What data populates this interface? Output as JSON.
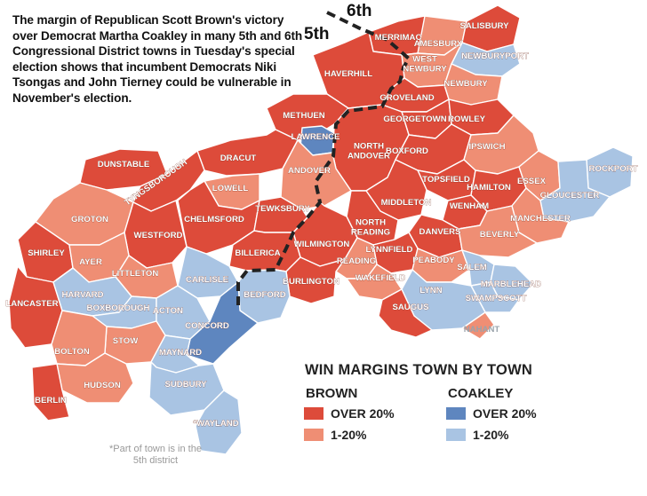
{
  "caption": "The margin of Republican Scott Brown's victory over Democrat Martha Coakley in many 5th and 6th Congressional District towns in Tuesday's special election shows that incumbent Democrats Niki Tsongas and John Tierney could be vulnerable in November's election.",
  "district_labels": {
    "north": "6th",
    "south": "5th"
  },
  "colors": {
    "brown_over_20": "#dd4b3a",
    "brown_1_20": "#ef8e74",
    "coakley_over_20": "#5e86bf",
    "coakley_1_20": "#a9c4e3",
    "outline": "#ffffff",
    "district_line": "#222222"
  },
  "legend": {
    "title": "WIN MARGINS TOWN BY TOWN",
    "brown": {
      "heading": "BROWN",
      "over": "OVER 20%",
      "under": "1-20%"
    },
    "coakley": {
      "heading": "COAKLEY",
      "over": "OVER 20%",
      "under": "1-20%"
    }
  },
  "footnote": "*Part of town is in the 5th district",
  "towns": [
    {
      "name": "AMESBURY",
      "cat": "brown_1_20"
    },
    {
      "name": "SALISBURY",
      "cat": "brown_over_20"
    },
    {
      "name": "MERRIMAC",
      "cat": "brown_over_20"
    },
    {
      "name": "NEWBURYPORT",
      "cat": "coakley_1_20"
    },
    {
      "name": "WEST NEWBURY",
      "cat": "brown_1_20"
    },
    {
      "name": "NEWBURY",
      "cat": "brown_1_20"
    },
    {
      "name": "HAVERHILL",
      "cat": "brown_over_20"
    },
    {
      "name": "GROVELAND",
      "cat": "brown_over_20"
    },
    {
      "name": "GEORGETOWN",
      "cat": "brown_over_20"
    },
    {
      "name": "ROWLEY",
      "cat": "brown_over_20"
    },
    {
      "name": "METHUEN",
      "cat": "brown_over_20"
    },
    {
      "name": "LAWRENCE",
      "cat": "coakley_over_20"
    },
    {
      "name": "NORTH ANDOVER",
      "cat": "brown_over_20"
    },
    {
      "name": "BOXFORD",
      "cat": "brown_over_20"
    },
    {
      "name": "IPSWICH",
      "cat": "brown_1_20"
    },
    {
      "name": "DUNSTABLE",
      "cat": "brown_over_20"
    },
    {
      "name": "DRACUT",
      "cat": "brown_over_20"
    },
    {
      "name": "ANDOVER",
      "cat": "brown_1_20"
    },
    {
      "name": "TYNGSBOROUGH",
      "cat": "brown_over_20"
    },
    {
      "name": "LOWELL",
      "cat": "brown_1_20"
    },
    {
      "name": "TOPSFIELD",
      "cat": "brown_over_20"
    },
    {
      "name": "HAMILTON",
      "cat": "brown_over_20"
    },
    {
      "name": "ESSEX",
      "cat": "brown_1_20"
    },
    {
      "name": "ROCKPORT",
      "cat": "coakley_1_20"
    },
    {
      "name": "GLOUCESTER",
      "cat": "coakley_1_20"
    },
    {
      "name": "GROTON",
      "cat": "brown_1_20"
    },
    {
      "name": "CHELMSFORD",
      "cat": "brown_over_20"
    },
    {
      "name": "TEWKSBURY",
      "cat": "brown_over_20"
    },
    {
      "name": "MIDDLETON",
      "cat": "brown_over_20"
    },
    {
      "name": "WENHAM",
      "cat": "brown_over_20"
    },
    {
      "name": "MANCHESTER",
      "cat": "brown_1_20"
    },
    {
      "name": "WESTFORD",
      "cat": "brown_over_20"
    },
    {
      "name": "NORTH READING",
      "cat": "brown_over_20"
    },
    {
      "name": "DANVERS",
      "cat": "brown_over_20"
    },
    {
      "name": "BEVERLY",
      "cat": "brown_1_20"
    },
    {
      "name": "WILMINGTON",
      "cat": "brown_over_20"
    },
    {
      "name": "LYNNFIELD",
      "cat": "brown_over_20"
    },
    {
      "name": "SHIRLEY",
      "cat": "brown_over_20"
    },
    {
      "name": "AYER",
      "cat": "brown_1_20"
    },
    {
      "name": "BILLERICA",
      "cat": "brown_over_20"
    },
    {
      "name": "READING",
      "cat": "brown_1_20"
    },
    {
      "name": "PEABODY",
      "cat": "brown_1_20"
    },
    {
      "name": "SALEM",
      "cat": "coakley_1_20"
    },
    {
      "name": "LITTLETON",
      "cat": "brown_1_20"
    },
    {
      "name": "CARLISLE",
      "cat": "coakley_1_20"
    },
    {
      "name": "BURLINGTON",
      "cat": "brown_over_20"
    },
    {
      "name": "WAKEFIELD",
      "cat": "brown_1_20"
    },
    {
      "name": "MARBLEHEAD",
      "cat": "coakley_1_20"
    },
    {
      "name": "SWAMPSCOTT",
      "cat": "coakley_1_20"
    },
    {
      "name": "LANCASTER",
      "cat": "brown_over_20"
    },
    {
      "name": "HARVARD",
      "cat": "coakley_1_20"
    },
    {
      "name": "BOXBOROUGH",
      "cat": "coakley_1_20"
    },
    {
      "name": "ACTON",
      "cat": "coakley_1_20"
    },
    {
      "name": "BEDFORD",
      "cat": "coakley_1_20"
    },
    {
      "name": "LYNN",
      "cat": "coakley_1_20"
    },
    {
      "name": "SAUGUS",
      "cat": "brown_over_20"
    },
    {
      "name": "NAHANT",
      "cat": "brown_1_20"
    },
    {
      "name": "CONCORD",
      "cat": "coakley_over_20"
    },
    {
      "name": "STOW",
      "cat": "brown_1_20"
    },
    {
      "name": "BOLTON",
      "cat": "brown_1_20"
    },
    {
      "name": "MAYNARD",
      "cat": "coakley_1_20"
    },
    {
      "name": "HUDSON",
      "cat": "brown_1_20"
    },
    {
      "name": "SUDBURY",
      "cat": "coakley_1_20"
    },
    {
      "name": "BERLIN",
      "cat": "brown_over_20"
    },
    {
      "name": "*WAYLAND",
      "cat": "coakley_1_20"
    }
  ]
}
